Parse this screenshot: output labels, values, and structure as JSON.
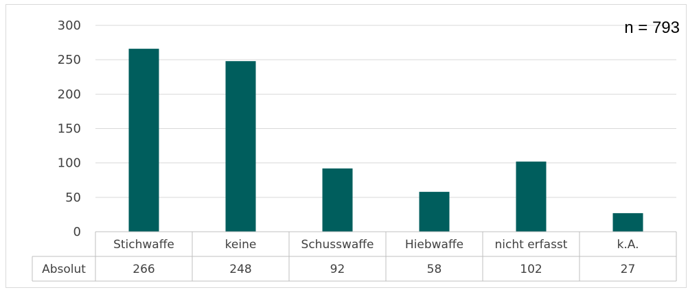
{
  "chart_data": {
    "type": "bar",
    "categories": [
      "Stichwaffe",
      "keine",
      "Schusswaffe",
      "Hiebwaffe",
      "nicht erfasst",
      "k.A."
    ],
    "values": [
      266,
      248,
      92,
      58,
      102,
      27
    ],
    "title": "",
    "xlabel": "",
    "ylabel": "",
    "ylim": [
      0,
      300
    ],
    "yticks": [
      "0",
      "50",
      "100",
      "150",
      "200",
      "250",
      "300"
    ],
    "annotation": "n = 793",
    "table": {
      "row_label": "Absolut",
      "values": [
        "266",
        "248",
        "92",
        "58",
        "102",
        "27"
      ]
    },
    "grid": true,
    "legend": "none",
    "bar_color": "#005E5D"
  }
}
